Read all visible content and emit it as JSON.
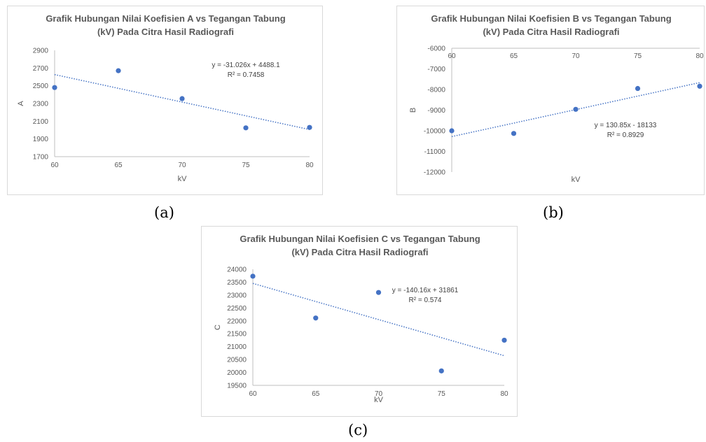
{
  "charts": [
    {
      "caption": "(a)",
      "chart_data": {
        "type": "scatter",
        "title": [
          "Grafik Hubungan Nilai Koefisien A vs Tegangan Tabung",
          "(kV) Pada Citra Hasil Radiografi"
        ],
        "xlabel": "kV",
        "ylabel": "A",
        "x_ticks": [
          "60",
          "65",
          "70",
          "75",
          "80"
        ],
        "y_ticks": [
          "1700",
          "1900",
          "2100",
          "2300",
          "2500",
          "2700",
          "2900"
        ],
        "xlim": [
          60,
          80
        ],
        "ylim": [
          1700,
          2900
        ],
        "x_axis_position": "bottom",
        "grid": false,
        "series": [
          {
            "x": [
              60,
              65,
              70,
              75,
              80
            ],
            "y": [
              2480,
              2670,
              2355,
              2025,
              2030
            ],
            "color": "#4472c4"
          }
        ],
        "trendline": {
          "slope": -31.026,
          "intercept": 4488.1,
          "color": "#4472c4",
          "style": "dotted"
        },
        "annotations": [
          "y = -31.026x + 4488.1",
          "R² = 0.7458"
        ]
      }
    },
    {
      "caption": "(b)",
      "chart_data": {
        "type": "scatter",
        "title": [
          "Grafik Hubungan Nilai Koefisien B vs Tegangan Tabung",
          "(kV) Pada Citra Hasil Radiografi"
        ],
        "xlabel": "kV",
        "ylabel": "B",
        "x_ticks": [
          "60",
          "65",
          "70",
          "75",
          "80"
        ],
        "y_ticks": [
          "-12000",
          "-11000",
          "-10000",
          "-9000",
          "-8000",
          "-7000",
          "-6000"
        ],
        "xlim": [
          60,
          80
        ],
        "ylim": [
          -12000,
          -6000
        ],
        "x_axis_position": "top",
        "grid": false,
        "series": [
          {
            "x": [
              60,
              65,
              70,
              75,
              80
            ],
            "y": [
              -10000,
              -10130,
              -8960,
              -7950,
              -7840
            ],
            "color": "#4472c4"
          }
        ],
        "trendline": {
          "slope": 130.85,
          "intercept": -18133,
          "color": "#4472c4",
          "style": "dotted"
        },
        "annotations": [
          "y = 130.85x - 18133",
          "R² = 0.8929"
        ]
      }
    },
    {
      "caption": "(c)",
      "chart_data": {
        "type": "scatter",
        "title": [
          "Grafik Hubungan Nilai Koefisien C vs Tegangan Tabung",
          "(kV) Pada Citra Hasil Radiografi"
        ],
        "xlabel": "kV",
        "ylabel": "C",
        "x_ticks": [
          "60",
          "65",
          "70",
          "75",
          "80"
        ],
        "y_ticks": [
          "19500",
          "20000",
          "20500",
          "21000",
          "21500",
          "22000",
          "22500",
          "23000",
          "23500",
          "24000"
        ],
        "xlim": [
          60,
          80
        ],
        "ylim": [
          19500,
          24000
        ],
        "x_axis_position": "bottom",
        "grid": false,
        "series": [
          {
            "x": [
              60,
              65,
              70,
              75,
              80
            ],
            "y": [
              23730,
              22110,
              23100,
              20060,
              21250
            ],
            "color": "#4472c4"
          }
        ],
        "trendline": {
          "slope": -140.16,
          "intercept": 31861,
          "color": "#4472c4",
          "style": "dotted"
        },
        "annotations": [
          "y = -140.16x + 31861",
          "R² = 0.574"
        ]
      }
    }
  ]
}
